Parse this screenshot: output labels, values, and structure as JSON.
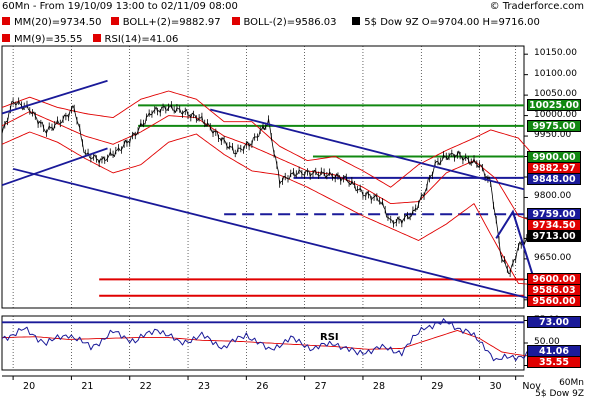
{
  "header": {
    "title": "60Mn - From 19/10/09 13:00 to 02/11/09 08:00",
    "brand": "© Traderforce.com",
    "legend_row1": [
      {
        "text": "MM(20)=9734.50",
        "color": "#e00000"
      },
      {
        "text": "BOLL+(2)=9882.97",
        "color": "#e00000"
      },
      {
        "text": "BOLL-(2)=9586.03",
        "color": "#e00000"
      },
      {
        "text": "5$ Dow 9Z O=9704.00 H=9716.00",
        "color": "#000000"
      }
    ],
    "legend_row2": [
      {
        "text": "MM(9)=35.55",
        "color": "#e00000"
      },
      {
        "text": "RSI(14)=41.06",
        "color": "#e00000"
      }
    ]
  },
  "corner": {
    "line1": "60Mn",
    "line2": "5$ Dow 9Z"
  },
  "price_tags": [
    {
      "text": "10025.00",
      "bg": "#118811",
      "fg": "#ffffff"
    },
    {
      "text": "9975.00",
      "bg": "#118811",
      "fg": "#ffffff"
    },
    {
      "text": "9900.00",
      "bg": "#118811",
      "fg": "#ffffff"
    },
    {
      "text": "9882.97",
      "bg": "#e00000",
      "fg": "#ffffff"
    },
    {
      "text": "9848.00",
      "bg": "#1a1a99",
      "fg": "#ffffff"
    },
    {
      "text": "9759.00",
      "bg": "#1a1a99",
      "fg": "#ffffff"
    },
    {
      "text": "9734.50",
      "bg": "#e00000",
      "fg": "#ffffff"
    },
    {
      "text": "9713.00",
      "bg": "#000000",
      "fg": "#ffffff"
    },
    {
      "text": "9600.00",
      "bg": "#e00000",
      "fg": "#ffffff"
    },
    {
      "text": "9586.03",
      "bg": "#e00000",
      "fg": "#ffffff"
    },
    {
      "text": "9560.00",
      "bg": "#e00000",
      "fg": "#ffffff"
    }
  ],
  "rsi_tags": [
    {
      "text": "73.00",
      "bg": "#1a1a99",
      "fg": "#ffffff"
    },
    {
      "text": "41.06",
      "bg": "#1a1a99",
      "fg": "#ffffff"
    },
    {
      "text": "35.55",
      "bg": "#e00000",
      "fg": "#ffffff"
    }
  ],
  "chart_data": {
    "type": "line",
    "title": "",
    "x_tick_labels": [
      "20",
      "21",
      "22",
      "23",
      "26",
      "27",
      "28",
      "29",
      "30",
      "Nov"
    ],
    "y_tick_labels": [
      "10150.00",
      "10100.00",
      "10050.00",
      "10000.00",
      "9950.00",
      "9900.00",
      "9850.00",
      "9800.00",
      "9750.00",
      "9700.00",
      "9650.00",
      "9600.00",
      "9550.00"
    ],
    "ylim": [
      9530,
      10170
    ],
    "rsi_y_tick_labels": [
      "75.00",
      "50.00",
      "25.00"
    ],
    "rsi_ylim": [
      20,
      80
    ],
    "rsi_label": "RSI",
    "x_count": 188,
    "day_starts": [
      4,
      25,
      46,
      67,
      88,
      109,
      130,
      151,
      172,
      185
    ],
    "price_path": [
      [
        0,
        9955
      ],
      [
        4,
        10035
      ],
      [
        10,
        10015
      ],
      [
        16,
        9962
      ],
      [
        22,
        9990
      ],
      [
        26,
        10020
      ],
      [
        30,
        9905
      ],
      [
        36,
        9890
      ],
      [
        42,
        9915
      ],
      [
        48,
        9955
      ],
      [
        54,
        10010
      ],
      [
        60,
        10020
      ],
      [
        66,
        10008
      ],
      [
        72,
        9990
      ],
      [
        78,
        9950
      ],
      [
        84,
        9910
      ],
      [
        90,
        9935
      ],
      [
        96,
        9985
      ],
      [
        100,
        9840
      ],
      [
        106,
        9860
      ],
      [
        112,
        9860
      ],
      [
        118,
        9855
      ],
      [
        124,
        9845
      ],
      [
        130,
        9810
      ],
      [
        136,
        9795
      ],
      [
        140,
        9740
      ],
      [
        144,
        9745
      ],
      [
        148,
        9760
      ],
      [
        152,
        9810
      ],
      [
        156,
        9880
      ],
      [
        160,
        9900
      ],
      [
        164,
        9906
      ],
      [
        168,
        9890
      ],
      [
        172,
        9880
      ],
      [
        176,
        9835
      ],
      [
        178,
        9740
      ],
      [
        180,
        9650
      ],
      [
        183,
        9615
      ],
      [
        186,
        9680
      ],
      [
        190,
        9700
      ],
      [
        194,
        9713
      ]
    ],
    "ma20_path": [
      [
        0,
        9975
      ],
      [
        10,
        10010
      ],
      [
        20,
        9980
      ],
      [
        30,
        9950
      ],
      [
        40,
        9930
      ],
      [
        50,
        9960
      ],
      [
        60,
        10000
      ],
      [
        70,
        9995
      ],
      [
        80,
        9950
      ],
      [
        90,
        9925
      ],
      [
        100,
        9895
      ],
      [
        110,
        9865
      ],
      [
        120,
        9855
      ],
      [
        130,
        9825
      ],
      [
        140,
        9785
      ],
      [
        150,
        9790
      ],
      [
        160,
        9860
      ],
      [
        170,
        9890
      ],
      [
        178,
        9845
      ],
      [
        186,
        9755
      ],
      [
        194,
        9734.5
      ]
    ],
    "boll_upper_path": [
      [
        0,
        10020
      ],
      [
        10,
        10045
      ],
      [
        20,
        10020
      ],
      [
        30,
        10005
      ],
      [
        40,
        9995
      ],
      [
        50,
        10040
      ],
      [
        60,
        10060
      ],
      [
        70,
        10040
      ],
      [
        80,
        9985
      ],
      [
        90,
        9985
      ],
      [
        100,
        9925
      ],
      [
        110,
        9890
      ],
      [
        120,
        9900
      ],
      [
        130,
        9865
      ],
      [
        140,
        9825
      ],
      [
        150,
        9880
      ],
      [
        160,
        9915
      ],
      [
        170,
        9945
      ],
      [
        176,
        9965
      ],
      [
        186,
        9945
      ],
      [
        194,
        9883
      ]
    ],
    "boll_lower_path": [
      [
        0,
        9930
      ],
      [
        10,
        9960
      ],
      [
        20,
        9935
      ],
      [
        30,
        9895
      ],
      [
        40,
        9860
      ],
      [
        50,
        9880
      ],
      [
        60,
        9935
      ],
      [
        70,
        9955
      ],
      [
        80,
        9905
      ],
      [
        90,
        9865
      ],
      [
        100,
        9855
      ],
      [
        110,
        9825
      ],
      [
        120,
        9790
      ],
      [
        130,
        9755
      ],
      [
        140,
        9725
      ],
      [
        150,
        9695
      ],
      [
        160,
        9735
      ],
      [
        170,
        9785
      ],
      [
        176,
        9710
      ],
      [
        186,
        9590
      ],
      [
        194,
        9586
      ]
    ],
    "rsi_path": [
      [
        0,
        55
      ],
      [
        8,
        65
      ],
      [
        16,
        50
      ],
      [
        24,
        60
      ],
      [
        32,
        45
      ],
      [
        40,
        62
      ],
      [
        48,
        52
      ],
      [
        56,
        66
      ],
      [
        64,
        50
      ],
      [
        72,
        58
      ],
      [
        80,
        45
      ],
      [
        88,
        60
      ],
      [
        96,
        42
      ],
      [
        104,
        55
      ],
      [
        112,
        44
      ],
      [
        120,
        50
      ],
      [
        128,
        38
      ],
      [
        136,
        45
      ],
      [
        144,
        40
      ],
      [
        152,
        68
      ],
      [
        160,
        73
      ],
      [
        168,
        62
      ],
      [
        174,
        46
      ],
      [
        178,
        30
      ],
      [
        182,
        34
      ],
      [
        188,
        36
      ],
      [
        194,
        41.06
      ]
    ],
    "rsi_ma_path": [
      [
        0,
        56
      ],
      [
        12,
        57
      ],
      [
        24,
        54
      ],
      [
        36,
        55
      ],
      [
        48,
        56
      ],
      [
        60,
        56
      ],
      [
        72,
        53
      ],
      [
        84,
        52
      ],
      [
        96,
        50
      ],
      [
        108,
        48
      ],
      [
        120,
        46
      ],
      [
        132,
        43
      ],
      [
        144,
        44
      ],
      [
        156,
        56
      ],
      [
        164,
        64
      ],
      [
        172,
        55
      ],
      [
        180,
        40
      ],
      [
        188,
        36
      ],
      [
        194,
        35.55
      ]
    ],
    "levels": [
      {
        "value": 10025,
        "color": "#118811",
        "start": 49,
        "dash": false
      },
      {
        "value": 9975,
        "color": "#118811",
        "start": 49,
        "dash": false
      },
      {
        "value": 9900,
        "color": "#118811",
        "start": 112,
        "dash": false
      },
      {
        "value": 9848,
        "color": "#1a1a99",
        "start": 105,
        "dash": false
      },
      {
        "value": 9759,
        "color": "#1a1a99",
        "start": 80,
        "dash": true
      },
      {
        "value": 9600,
        "color": "#e00000",
        "start": 35,
        "dash": false
      },
      {
        "value": 9560,
        "color": "#e00000",
        "start": 35,
        "dash": false
      }
    ],
    "rsi_levels": [
      {
        "value": 73,
        "color": "#1a1a99"
      }
    ],
    "channel_lines": [
      {
        "from": [
          0,
          10005
        ],
        "to": [
          38,
          10085
        ]
      },
      {
        "from": [
          0,
          9830
        ],
        "to": [
          38,
          9920
        ]
      },
      {
        "from": [
          75,
          10015
        ],
        "to": [
          188,
          9820
        ]
      },
      {
        "from": [
          4,
          9870
        ],
        "to": [
          192,
          9550
        ]
      }
    ],
    "arrow_path": [
      [
        178,
        9700
      ],
      [
        184,
        9765
      ],
      [
        194,
        9548
      ]
    ]
  }
}
